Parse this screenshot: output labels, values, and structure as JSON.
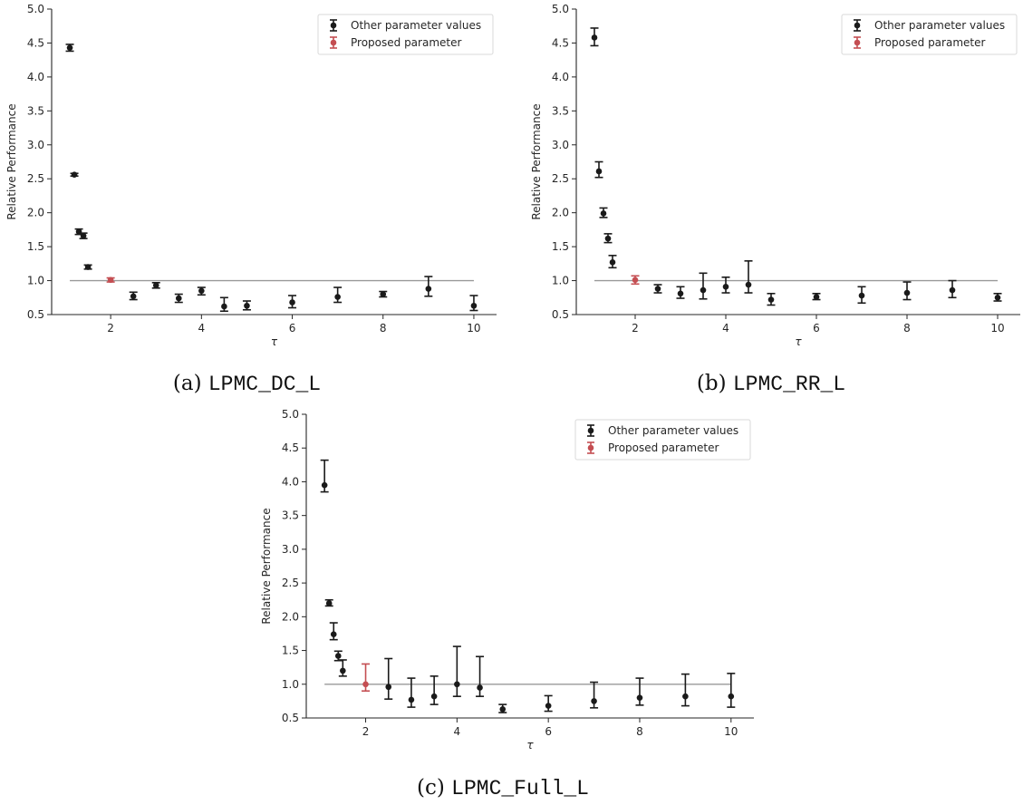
{
  "colors": {
    "other": "#1a1a1a",
    "proposed": "#c44e52",
    "reference_line": "#999999",
    "axis": "#262626"
  },
  "chart_data": [
    {
      "type": "scatter",
      "caption_prefix": "(a) ",
      "caption_code": "LPMC_DC_L",
      "xlabel": "τ",
      "ylabel": "Relative Performance",
      "xlim": [
        0.7,
        10.5
      ],
      "ylim": [
        0.5,
        5.0
      ],
      "xticks": [
        2,
        4,
        6,
        8,
        10
      ],
      "yticks": [
        0.5,
        1.0,
        1.5,
        2.0,
        2.5,
        3.0,
        3.5,
        4.0,
        4.5,
        5.0
      ],
      "reference_line": {
        "y": 1.0,
        "x_from": 1.1,
        "x_to": 10
      },
      "legend": {
        "position": "upper-right",
        "entries": [
          "Other parameter values",
          "Proposed parameter"
        ]
      },
      "series": [
        {
          "name": "Other parameter values",
          "color_key": "other",
          "points": [
            {
              "x": 1.1,
              "y": 4.43,
              "lo": 4.38,
              "hi": 4.48
            },
            {
              "x": 1.2,
              "y": 2.56,
              "lo": 2.54,
              "hi": 2.58
            },
            {
              "x": 1.3,
              "y": 1.72,
              "lo": 1.68,
              "hi": 1.76
            },
            {
              "x": 1.4,
              "y": 1.66,
              "lo": 1.62,
              "hi": 1.7
            },
            {
              "x": 1.5,
              "y": 1.2,
              "lo": 1.17,
              "hi": 1.23
            },
            {
              "x": 2.5,
              "y": 0.77,
              "lo": 0.72,
              "hi": 0.83
            },
            {
              "x": 3.0,
              "y": 0.93,
              "lo": 0.89,
              "hi": 0.97
            },
            {
              "x": 3.5,
              "y": 0.74,
              "lo": 0.68,
              "hi": 0.8
            },
            {
              "x": 4.0,
              "y": 0.85,
              "lo": 0.79,
              "hi": 0.9
            },
            {
              "x": 4.5,
              "y": 0.62,
              "lo": 0.55,
              "hi": 0.75
            },
            {
              "x": 5.0,
              "y": 0.63,
              "lo": 0.57,
              "hi": 0.7
            },
            {
              "x": 6.0,
              "y": 0.68,
              "lo": 0.6,
              "hi": 0.78
            },
            {
              "x": 7.0,
              "y": 0.76,
              "lo": 0.68,
              "hi": 0.9
            },
            {
              "x": 8.0,
              "y": 0.8,
              "lo": 0.76,
              "hi": 0.84
            },
            {
              "x": 9.0,
              "y": 0.88,
              "lo": 0.77,
              "hi": 1.06
            },
            {
              "x": 10.0,
              "y": 0.63,
              "lo": 0.56,
              "hi": 0.78
            }
          ]
        },
        {
          "name": "Proposed parameter",
          "color_key": "proposed",
          "points": [
            {
              "x": 2.0,
              "y": 1.01,
              "lo": 0.98,
              "hi": 1.04
            }
          ]
        }
      ]
    },
    {
      "type": "scatter",
      "caption_prefix": "(b) ",
      "caption_code": "LPMC_RR_L",
      "xlabel": "τ",
      "ylabel": "Relative Performance",
      "xlim": [
        0.7,
        10.5
      ],
      "ylim": [
        0.5,
        5.0
      ],
      "xticks": [
        2,
        4,
        6,
        8,
        10
      ],
      "yticks": [
        0.5,
        1.0,
        1.5,
        2.0,
        2.5,
        3.0,
        3.5,
        4.0,
        4.5,
        5.0
      ],
      "reference_line": {
        "y": 1.0,
        "x_from": 1.1,
        "x_to": 10
      },
      "legend": {
        "position": "upper-right",
        "entries": [
          "Other parameter values",
          "Proposed parameter"
        ]
      },
      "series": [
        {
          "name": "Other parameter values",
          "color_key": "other",
          "points": [
            {
              "x": 1.1,
              "y": 4.58,
              "lo": 4.46,
              "hi": 4.72
            },
            {
              "x": 1.2,
              "y": 2.61,
              "lo": 2.52,
              "hi": 2.75
            },
            {
              "x": 1.3,
              "y": 1.99,
              "lo": 1.93,
              "hi": 2.07
            },
            {
              "x": 1.4,
              "y": 1.62,
              "lo": 1.56,
              "hi": 1.69
            },
            {
              "x": 1.5,
              "y": 1.27,
              "lo": 1.19,
              "hi": 1.37
            },
            {
              "x": 2.5,
              "y": 0.88,
              "lo": 0.82,
              "hi": 0.94
            },
            {
              "x": 3.0,
              "y": 0.81,
              "lo": 0.74,
              "hi": 0.91
            },
            {
              "x": 3.5,
              "y": 0.86,
              "lo": 0.73,
              "hi": 1.11
            },
            {
              "x": 4.0,
              "y": 0.91,
              "lo": 0.82,
              "hi": 1.05
            },
            {
              "x": 4.5,
              "y": 0.94,
              "lo": 0.82,
              "hi": 1.29
            },
            {
              "x": 5.0,
              "y": 0.72,
              "lo": 0.64,
              "hi": 0.81
            },
            {
              "x": 6.0,
              "y": 0.76,
              "lo": 0.72,
              "hi": 0.81
            },
            {
              "x": 7.0,
              "y": 0.78,
              "lo": 0.67,
              "hi": 0.91
            },
            {
              "x": 8.0,
              "y": 0.82,
              "lo": 0.72,
              "hi": 0.98
            },
            {
              "x": 9.0,
              "y": 0.86,
              "lo": 0.75,
              "hi": 1.0
            },
            {
              "x": 10.0,
              "y": 0.75,
              "lo": 0.7,
              "hi": 0.81
            }
          ]
        },
        {
          "name": "Proposed parameter",
          "color_key": "proposed",
          "points": [
            {
              "x": 2.0,
              "y": 1.01,
              "lo": 0.95,
              "hi": 1.07
            }
          ]
        }
      ]
    },
    {
      "type": "scatter",
      "caption_prefix": "(c) ",
      "caption_code": "LPMC_Full_L",
      "xlabel": "τ",
      "ylabel": "Relative Performance",
      "xlim": [
        0.7,
        10.5
      ],
      "ylim": [
        0.5,
        5.0
      ],
      "xticks": [
        2,
        4,
        6,
        8,
        10
      ],
      "yticks": [
        0.5,
        1.0,
        1.5,
        2.0,
        2.5,
        3.0,
        3.5,
        4.0,
        4.5,
        5.0
      ],
      "reference_line": {
        "y": 1.0,
        "x_from": 1.1,
        "x_to": 10
      },
      "legend": {
        "position": "upper-right",
        "entries": [
          "Other parameter values",
          "Proposed parameter"
        ]
      },
      "series": [
        {
          "name": "Other parameter values",
          "color_key": "other",
          "points": [
            {
              "x": 1.1,
              "y": 3.95,
              "lo": 3.85,
              "hi": 4.32
            },
            {
              "x": 1.2,
              "y": 2.2,
              "lo": 2.16,
              "hi": 2.25
            },
            {
              "x": 1.3,
              "y": 1.74,
              "lo": 1.66,
              "hi": 1.91
            },
            {
              "x": 1.4,
              "y": 1.42,
              "lo": 1.35,
              "hi": 1.49
            },
            {
              "x": 1.5,
              "y": 1.2,
              "lo": 1.12,
              "hi": 1.36
            },
            {
              "x": 2.5,
              "y": 0.96,
              "lo": 0.78,
              "hi": 1.38
            },
            {
              "x": 3.0,
              "y": 0.77,
              "lo": 0.66,
              "hi": 1.09
            },
            {
              "x": 3.5,
              "y": 0.82,
              "lo": 0.7,
              "hi": 1.12
            },
            {
              "x": 4.0,
              "y": 1.0,
              "lo": 0.82,
              "hi": 1.56
            },
            {
              "x": 4.5,
              "y": 0.95,
              "lo": 0.82,
              "hi": 1.41
            },
            {
              "x": 5.0,
              "y": 0.63,
              "lo": 0.58,
              "hi": 0.7
            },
            {
              "x": 6.0,
              "y": 0.68,
              "lo": 0.6,
              "hi": 0.83
            },
            {
              "x": 7.0,
              "y": 0.75,
              "lo": 0.65,
              "hi": 1.03
            },
            {
              "x": 8.0,
              "y": 0.8,
              "lo": 0.69,
              "hi": 1.09
            },
            {
              "x": 9.0,
              "y": 0.82,
              "lo": 0.68,
              "hi": 1.15
            },
            {
              "x": 10.0,
              "y": 0.82,
              "lo": 0.66,
              "hi": 1.16
            }
          ]
        },
        {
          "name": "Proposed parameter",
          "color_key": "proposed",
          "points": [
            {
              "x": 2.0,
              "y": 1.0,
              "lo": 0.9,
              "hi": 1.3
            }
          ]
        }
      ]
    }
  ]
}
